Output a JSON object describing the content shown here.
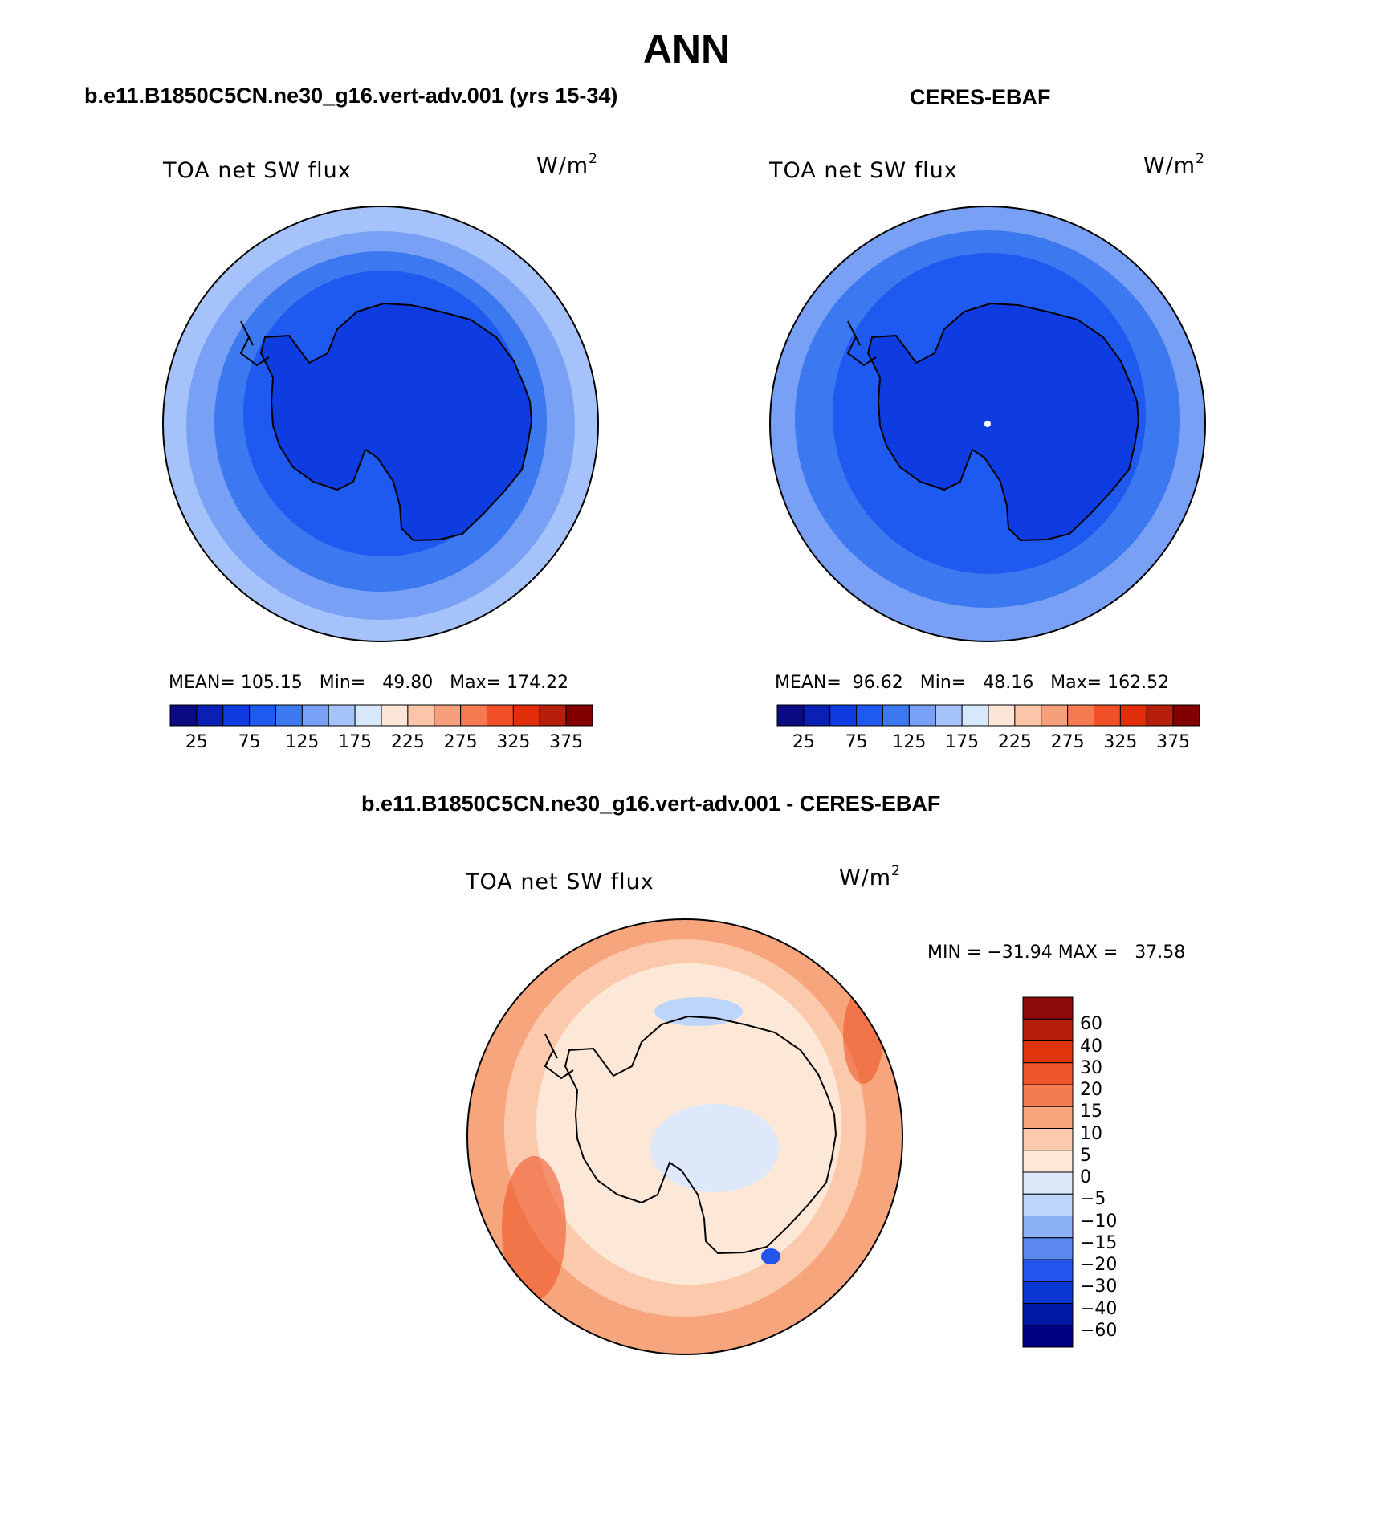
{
  "title": "ANN",
  "panels": {
    "model": {
      "title": "b.e11.B1850C5CN.ne30_g16.vert-adv.001 (yrs 15-34)",
      "variable": "TOA net SW flux",
      "units_base": "W/m",
      "units_exp": "2",
      "stats": "MEAN= 105.15   Min=   49.80   Max= 174.22"
    },
    "obs": {
      "title": "CERES-EBAF",
      "variable": "TOA net SW flux",
      "units_base": "W/m",
      "units_exp": "2",
      "stats": "MEAN=  96.62   Min=   48.16   Max= 162.52"
    },
    "diff": {
      "title": "b.e11.B1850C5CN.ne30_g16.vert-adv.001 - CERES-EBAF",
      "variable": "TOA net SW flux",
      "units_base": "W/m",
      "units_exp": "2",
      "stats": "MIN = −31.94 MAX =   37.58"
    }
  },
  "colorbar_abs": {
    "colors": [
      "#0a0a82",
      "#0a1fb4",
      "#0f3ce0",
      "#1e5af0",
      "#3c78f0",
      "#78a0f5",
      "#a5c3fa",
      "#d7e8fb",
      "#fde6d7",
      "#fbc5aa",
      "#f6a07b",
      "#f57a50",
      "#f04f28",
      "#e12d0a",
      "#b41e0a",
      "#820000"
    ],
    "labels": [
      "25",
      "75",
      "125",
      "175",
      "225",
      "275",
      "325",
      "375"
    ]
  },
  "colorbar_diff": {
    "colors": [
      "#000082",
      "#0019a5",
      "#0a37d2",
      "#2355ec",
      "#5a87f0",
      "#8ab0f5",
      "#bdd5fa",
      "#dde9fb",
      "#fde8d7",
      "#fbcaac",
      "#f7a57d",
      "#f37d4f",
      "#ef5528",
      "#e0340a",
      "#b41e0a",
      "#8c0a0a"
    ],
    "labels": [
      "60",
      "40",
      "30",
      "20",
      "15",
      "10",
      "5",
      "0",
      "−5",
      "−10",
      "−15",
      "−20",
      "−30",
      "−40",
      "−60"
    ]
  },
  "map_fills": {
    "model": [
      "#a5c3fa",
      "#78a0f5",
      "#3c78f0",
      "#1e5af0",
      "#0f3ce0"
    ],
    "obs": [
      "#78a0f5",
      "#3c78f0",
      "#1e5af0",
      "#0f3ce0"
    ],
    "diff": [
      "#f7a57d",
      "#fbcaac",
      "#fde8d7"
    ]
  }
}
